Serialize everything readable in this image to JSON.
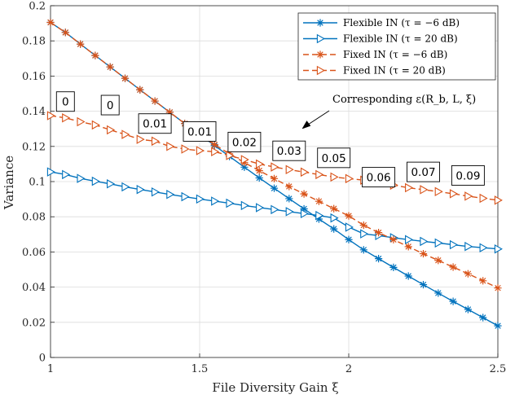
{
  "chart_data": {
    "type": "line",
    "xlabel": "File Diversity Gain ξ",
    "ylabel": "Variance",
    "xlim": [
      1,
      2.5
    ],
    "ylim": [
      0,
      0.2
    ],
    "xticks": [
      1,
      1.5,
      2,
      2.5
    ],
    "xtick_labels": [
      "1",
      "1.5",
      "2",
      "2.5"
    ],
    "yticks": [
      0,
      0.02,
      0.04,
      0.06,
      0.08,
      0.1,
      0.12,
      0.14,
      0.16,
      0.18,
      0.2
    ],
    "ytick_labels": [
      "0",
      "0.02",
      "0.04",
      "0.06",
      "0.08",
      "0.1",
      "0.12",
      "0.14",
      "0.16",
      "0.18",
      "0.2"
    ],
    "grid": true,
    "legend_position": "top-right",
    "x": [
      1.0,
      1.05,
      1.1,
      1.15,
      1.2,
      1.25,
      1.3,
      1.35,
      1.4,
      1.45,
      1.5,
      1.55,
      1.6,
      1.65,
      1.7,
      1.75,
      1.8,
      1.85,
      1.9,
      1.95,
      2.0,
      2.05,
      2.1,
      2.15,
      2.2,
      2.25,
      2.3,
      2.35,
      2.4,
      2.45,
      2.5
    ],
    "series": [
      {
        "name": "Flexible IN (τ = −6 dB)",
        "color": "#0072BD",
        "dash": "solid",
        "marker": "star",
        "values": [
          0.1905,
          0.1848,
          0.1782,
          0.1717,
          0.1652,
          0.1587,
          0.1522,
          0.1458,
          0.1394,
          0.133,
          0.1267,
          0.1205,
          0.1143,
          0.1082,
          0.1021,
          0.0962,
          0.0903,
          0.0845,
          0.0787,
          0.0731,
          0.067,
          0.0612,
          0.0562,
          0.0512,
          0.0463,
          0.0414,
          0.0366,
          0.0319,
          0.0273,
          0.0227,
          0.018
        ]
      },
      {
        "name": "Flexible IN (τ = 20 dB)",
        "color": "#0072BD",
        "dash": "solid",
        "marker": "triangle-right",
        "values": [
          0.1055,
          0.104,
          0.1018,
          0.1002,
          0.0987,
          0.097,
          0.0955,
          0.0941,
          0.0927,
          0.0914,
          0.0901,
          0.0889,
          0.0877,
          0.0864,
          0.0852,
          0.0841,
          0.0829,
          0.0818,
          0.0807,
          0.0793,
          0.0741,
          0.0703,
          0.0693,
          0.0681,
          0.067,
          0.066,
          0.0651,
          0.0641,
          0.0631,
          0.0624,
          0.0617
        ]
      },
      {
        "name": "Fixed IN (τ = −6 dB)",
        "color": "#D95319",
        "dash": "dashed",
        "marker": "star",
        "values": [
          0.1905,
          0.1848,
          0.1782,
          0.1717,
          0.1652,
          0.1587,
          0.1522,
          0.1458,
          0.1394,
          0.133,
          0.1267,
          0.121,
          0.1158,
          0.1108,
          0.1062,
          0.1017,
          0.0972,
          0.093,
          0.0888,
          0.0846,
          0.0805,
          0.0752,
          0.071,
          0.067,
          0.063,
          0.059,
          0.0552,
          0.0514,
          0.0476,
          0.0436,
          0.0395
        ]
      },
      {
        "name": "Fixed IN (τ = 20 dB)",
        "color": "#D95319",
        "dash": "dashed",
        "marker": "triangle-right",
        "values": [
          0.1375,
          0.1362,
          0.134,
          0.1322,
          0.1294,
          0.1268,
          0.124,
          0.123,
          0.12,
          0.1185,
          0.1176,
          0.117,
          0.1148,
          0.1125,
          0.11,
          0.1083,
          0.1068,
          0.1054,
          0.104,
          0.1026,
          0.1017,
          0.1008,
          0.0999,
          0.098,
          0.0965,
          0.0954,
          0.0943,
          0.0931,
          0.0917,
          0.0905,
          0.0894
        ]
      }
    ],
    "annotations": {
      "note": "Corresponding ε(R_b, L, ξ)",
      "boxes": [
        {
          "text": "0",
          "x": 1.05,
          "y": 0.1455
        },
        {
          "text": "0",
          "x": 1.2,
          "y": 0.1435
        },
        {
          "text": "0.01",
          "x": 1.35,
          "y": 0.133
        },
        {
          "text": "0.01",
          "x": 1.5,
          "y": 0.1285
        },
        {
          "text": "0.02",
          "x": 1.65,
          "y": 0.1225
        },
        {
          "text": "0.03",
          "x": 1.8,
          "y": 0.1175
        },
        {
          "text": "0.05",
          "x": 1.95,
          "y": 0.1135
        },
        {
          "text": "0.06",
          "x": 2.1,
          "y": 0.1025
        },
        {
          "text": "0.07",
          "x": 2.25,
          "y": 0.1055
        },
        {
          "text": "0.09",
          "x": 2.4,
          "y": 0.1035
        }
      ]
    }
  }
}
